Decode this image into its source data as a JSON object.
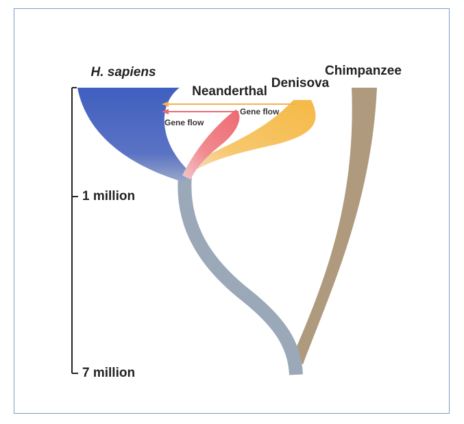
{
  "lineages": [
    {
      "label": "H. sapiens"
    },
    {
      "label": "Neanderthal"
    },
    {
      "label": "Denisova"
    },
    {
      "label": "Chimpanzee"
    }
  ],
  "gene_flow": [
    "Gene flow",
    "Gene flow"
  ],
  "timeline": [
    "1 million",
    "7 million"
  ]
}
